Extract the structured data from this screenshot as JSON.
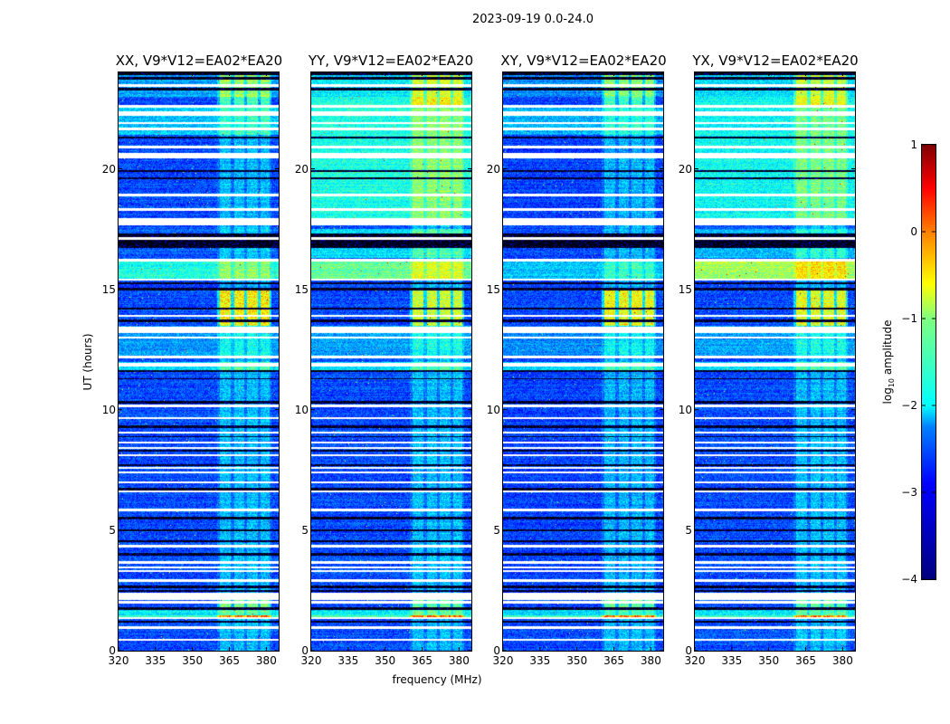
{
  "chart_data": {
    "type": "heatmap",
    "title": "2023-09-19 0.0-24.0",
    "xlabel": "frequency (MHz)",
    "ylabel": "UT (hours)",
    "xlim": [
      320,
      385
    ],
    "ylim": [
      0,
      24
    ],
    "xticks": [
      "320",
      "335",
      "350",
      "365",
      "380"
    ],
    "xtick_values": [
      320,
      335,
      350,
      365,
      380
    ],
    "yticks": [
      "0",
      "5",
      "10",
      "15",
      "20"
    ],
    "ytick_values": [
      0,
      5,
      10,
      15,
      20
    ],
    "colorbar": {
      "label_prefix": "log",
      "label_sub": "10",
      "label_suffix": " amplitude",
      "colormap": "jet",
      "range": [
        -4,
        1
      ],
      "ticks": [
        "1",
        "0",
        "−1",
        "−2",
        "−3",
        "−4"
      ],
      "tick_values": [
        1,
        0,
        -1,
        -2,
        -3,
        -4
      ]
    },
    "flagged_hours_white": [
      [
        23.4,
        23.5
      ],
      [
        22.55,
        22.65
      ],
      [
        22.2,
        22.4
      ],
      [
        21.85,
        21.95
      ],
      [
        21.6,
        21.7
      ],
      [
        20.85,
        20.95
      ],
      [
        20.45,
        20.65
      ],
      [
        18.85,
        18.95
      ],
      [
        18.25,
        18.35
      ],
      [
        17.65,
        17.95
      ],
      [
        17.05,
        17.15
      ],
      [
        16.15,
        16.25
      ],
      [
        15.35,
        15.45
      ],
      [
        13.85,
        13.95
      ],
      [
        13.2,
        13.45
      ],
      [
        12.95,
        13.05
      ],
      [
        12.15,
        12.25
      ],
      [
        11.8,
        11.95
      ],
      [
        10.1,
        10.2
      ],
      [
        9.6,
        9.7
      ],
      [
        9.0,
        9.1
      ],
      [
        8.6,
        8.68
      ],
      [
        8.36,
        8.44
      ],
      [
        8.06,
        8.14
      ],
      [
        7.56,
        7.64
      ],
      [
        7.36,
        7.44
      ],
      [
        6.96,
        7.04
      ],
      [
        6.56,
        6.64
      ],
      [
        5.8,
        5.9
      ],
      [
        4.3,
        4.4
      ],
      [
        3.6,
        3.7
      ],
      [
        3.42,
        3.48
      ],
      [
        3.27,
        3.33
      ],
      [
        2.85,
        2.95
      ],
      [
        2.1,
        2.4
      ],
      [
        1.95,
        2.05
      ],
      [
        1.3,
        1.4
      ],
      [
        0.9,
        1.0
      ],
      [
        0.4,
        0.5
      ]
    ],
    "flagged_hours_dark": [
      [
        23.9,
        24.0
      ],
      [
        23.7,
        23.8
      ],
      [
        23.25,
        23.35
      ],
      [
        21.25,
        21.35
      ],
      [
        19.85,
        19.95
      ],
      [
        19.55,
        19.65
      ],
      [
        16.7,
        17.3
      ],
      [
        15.2,
        15.3
      ],
      [
        14.95,
        15.05
      ],
      [
        14.15,
        14.25
      ],
      [
        13.65,
        13.75
      ],
      [
        11.55,
        11.65
      ],
      [
        11.25,
        11.32
      ],
      [
        10.25,
        10.35
      ],
      [
        9.25,
        9.35
      ],
      [
        8.85,
        8.92
      ],
      [
        8.25,
        8.32
      ],
      [
        7.65,
        7.75
      ],
      [
        6.65,
        6.75
      ],
      [
        5.45,
        5.55
      ],
      [
        4.95,
        5.05
      ],
      [
        4.5,
        4.6
      ],
      [
        3.95,
        4.05
      ],
      [
        2.6,
        2.7
      ],
      [
        2.45,
        2.52
      ],
      [
        1.7,
        1.8
      ],
      [
        1.15,
        1.25
      ]
    ],
    "rfi_subbands_mhz": [
      [
        361,
        365.6
      ],
      [
        367,
        371
      ],
      [
        372,
        376.6
      ],
      [
        377.5,
        381.5
      ]
    ],
    "panels": [
      {
        "title": "XX, V9*V12=EA02*EA20",
        "base_level": -3.0,
        "segments": [
          [
            23.0,
            24,
            -2.6
          ],
          [
            21.4,
            22.6,
            -2.4
          ],
          [
            16.3,
            17.5,
            -2.9
          ],
          [
            15.45,
            16.15,
            -2.0
          ],
          [
            12.2,
            13.5,
            -2.6
          ],
          [
            11.65,
            12.0,
            -2.3
          ],
          [
            1.45,
            1.7,
            -2.2
          ]
        ],
        "rfi_segments": [
          [
            22.6,
            24,
            1.3
          ],
          [
            13.5,
            15.0,
            2.3
          ],
          [
            1.3,
            1.45,
            3.0
          ],
          [
            1.7,
            2.1,
            1.6
          ],
          [
            0,
            24,
            0.6
          ]
        ]
      },
      {
        "title": "YY, V9*V12=EA02*EA20",
        "base_level": -3.0,
        "segments": [
          [
            23.0,
            24,
            -2.2
          ],
          [
            17.9,
            23.0,
            -2.0
          ],
          [
            16.3,
            17.5,
            -2.3
          ],
          [
            15.45,
            16.15,
            -1.6
          ],
          [
            12.2,
            13.5,
            -2.6
          ],
          [
            11.65,
            12.0,
            -2.2
          ],
          [
            1.45,
            1.7,
            -2.2
          ]
        ],
        "rfi_segments": [
          [
            22.6,
            24,
            1.2
          ],
          [
            13.5,
            15.0,
            2.0
          ],
          [
            1.3,
            1.45,
            3.0
          ],
          [
            1.7,
            2.1,
            1.4
          ],
          [
            0,
            24,
            0.6
          ]
        ]
      },
      {
        "title": "XY, V9*V12=EA02*EA20",
        "base_level": -3.05,
        "segments": [
          [
            23.0,
            24,
            -2.7
          ],
          [
            21.4,
            22.6,
            -2.5
          ],
          [
            16.3,
            17.5,
            -3.0
          ],
          [
            15.45,
            16.15,
            -2.4
          ],
          [
            12.2,
            13.5,
            -2.7
          ],
          [
            11.65,
            12.0,
            -2.3
          ],
          [
            1.45,
            1.7,
            -2.3
          ]
        ],
        "rfi_segments": [
          [
            22.6,
            24,
            1.3
          ],
          [
            13.5,
            15.0,
            2.2
          ],
          [
            1.3,
            1.45,
            3.0
          ],
          [
            1.7,
            2.1,
            1.5
          ],
          [
            0,
            24,
            0.6
          ]
        ]
      },
      {
        "title": "YX, V9*V12=EA02*EA20",
        "base_level": -3.0,
        "segments": [
          [
            23.0,
            24,
            -2.3
          ],
          [
            17.9,
            23.0,
            -2.1
          ],
          [
            16.3,
            17.5,
            -2.5
          ],
          [
            15.45,
            16.15,
            -1.3
          ],
          [
            12.2,
            13.5,
            -2.6
          ],
          [
            11.65,
            12.0,
            -2.2
          ],
          [
            1.45,
            1.7,
            -2.2
          ]
        ],
        "rfi_segments": [
          [
            22.6,
            24,
            1.2
          ],
          [
            13.5,
            15.0,
            2.1
          ],
          [
            1.3,
            1.45,
            3.0
          ],
          [
            1.7,
            2.1,
            1.4
          ],
          [
            0,
            24,
            0.6
          ]
        ]
      }
    ]
  }
}
